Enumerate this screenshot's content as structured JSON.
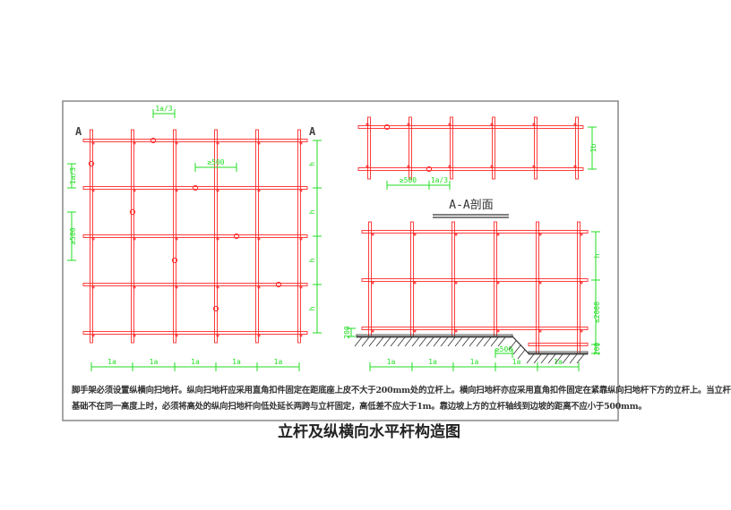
{
  "plan": {
    "section_marks": [
      "A",
      "A"
    ],
    "dims": {
      "offset_top": "1a/3",
      "offset_left": "1a/3",
      "min_500_top": "≥500",
      "min_500_left": "≥500",
      "bay": "1a",
      "height": "h"
    }
  },
  "plan_top_right": {
    "dims": {
      "width": "1b",
      "min_500": "≥500",
      "offset": "1a/3"
    }
  },
  "section": {
    "title": "A-A剖面",
    "dims": {
      "h": "h",
      "max_2000": "≤2000",
      "sweep_200_left": "200",
      "sweep_200_right": "200",
      "min_500": "≥500",
      "bay": "1a"
    }
  },
  "note": {
    "line1": "脚手架必须设置纵横向扫地杆。纵向扫地杆应采用直角扣件固定在距底座上皮不大于200mm处的立杆上。横向扫地杆亦应采用直角扣件固定在紧靠纵向扫地杆下方的立杆上。当立杆",
    "line2": "基础不在同一高度上时，必须将高处的纵向扫地杆向低处延长两跨与立杆固定，高低差不应大于1m。靠边坡上方的立杆轴线到边坡的距离不应小于500mm。"
  },
  "caption": "立杆及纵横向水平杆构造图",
  "colors": {
    "pipe": "#ff2a2a",
    "dimension": "#22dd22",
    "frame": "#888888",
    "ground": "#333333"
  }
}
